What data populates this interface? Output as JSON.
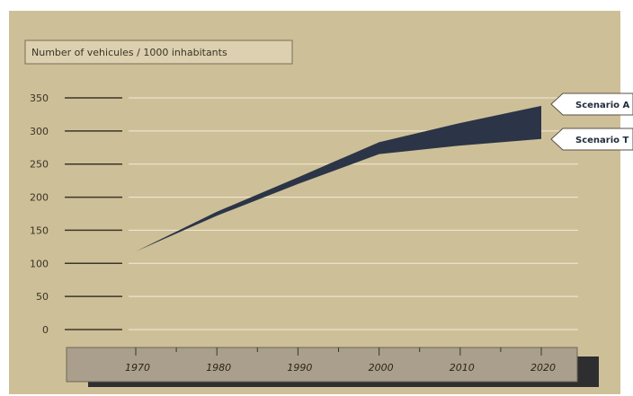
{
  "colors": {
    "background": "#cdbf98",
    "gridline": "#f3ecd6",
    "axis_dash": "#3d3627",
    "band": "#2b3547",
    "timeline": "#aa9f8c",
    "timeline_shadow": "#2e2e30",
    "title_box": "#dcd0b0"
  },
  "chart_data": {
    "type": "area",
    "title": "Number of vehicules / 1000 inhabitants",
    "x": [
      1970,
      1980,
      1990,
      2000,
      2010,
      2020
    ],
    "xticks": [
      "1970",
      "1980",
      "1990",
      "2000",
      "2010",
      "2020"
    ],
    "yticks": [
      "350",
      "300",
      "250",
      "200",
      "150",
      "100",
      "50",
      "0"
    ],
    "ylim": [
      0,
      350
    ],
    "xlim": [
      1970,
      2020
    ],
    "grid": true,
    "series": [
      {
        "name": "Scenario A",
        "x": [
          1970,
          1980,
          1990,
          2000,
          2010,
          2020
        ],
        "values": [
          118,
          178,
          230,
          283,
          312,
          338
        ]
      },
      {
        "name": "Scenario T",
        "x": [
          1970,
          1980,
          1990,
          2000,
          2010,
          2020
        ],
        "values": [
          118,
          172,
          220,
          265,
          278,
          288
        ]
      }
    ]
  }
}
